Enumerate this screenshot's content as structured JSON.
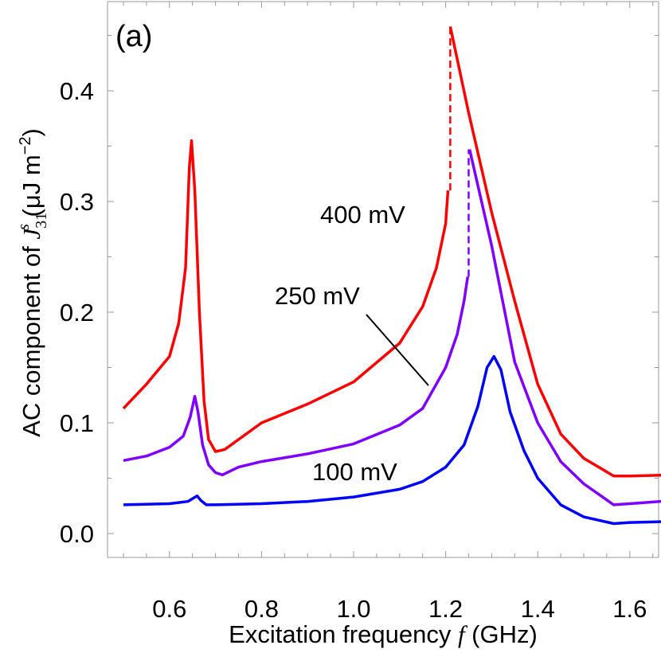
{
  "chart_data": {
    "type": "line",
    "panel_label": "(a)",
    "xlabel": {
      "prefix": "Excitation  frequency ",
      "var": "f",
      "suffix": "  (GHz)"
    },
    "ylabel": {
      "prefix": "AC  component  of  ",
      "var": "J",
      "sub": "31",
      "sup": "s",
      "suffix": "  (μJ m",
      "unit_exp": "−2",
      "close": ")"
    },
    "xlim": [
      0.46,
      1.71
    ],
    "ylim": [
      -0.022,
      0.48
    ],
    "xticks": [
      0.6,
      0.8,
      1.0,
      1.2,
      1.4,
      1.6
    ],
    "xtick_labels": [
      "0.6",
      "0.8",
      "1.0",
      "1.2",
      "1.4",
      "1.6"
    ],
    "yticks": [
      0.0,
      0.1,
      0.2,
      0.3,
      0.4
    ],
    "ytick_labels": [
      "0.0",
      "0.1",
      "0.2",
      "0.3",
      "0.4"
    ],
    "grid": false,
    "series": [
      {
        "name": "400 mV",
        "color": "#ff0000",
        "x": [
          0.5,
          0.55,
          0.6,
          0.62,
          0.635,
          0.643,
          0.648,
          0.655,
          0.665,
          0.675,
          0.685,
          0.7,
          0.72,
          0.75,
          0.8,
          0.9,
          1.0,
          1.1,
          1.15,
          1.18,
          1.2,
          1.205
        ],
        "y": [
          0.113,
          0.135,
          0.16,
          0.19,
          0.24,
          0.33,
          0.355,
          0.31,
          0.2,
          0.12,
          0.085,
          0.074,
          0.076,
          0.085,
          0.1,
          0.117,
          0.137,
          0.172,
          0.205,
          0.24,
          0.28,
          0.31
        ],
        "jump": {
          "x": 1.21,
          "from": 0.31,
          "to": 0.458
        },
        "x2": [
          1.21,
          1.25,
          1.3,
          1.35,
          1.4,
          1.45,
          1.5,
          1.565,
          1.6,
          1.7
        ],
        "y2": [
          0.458,
          0.38,
          0.29,
          0.21,
          0.135,
          0.09,
          0.068,
          0.052,
          0.052,
          0.053
        ]
      },
      {
        "name": "250 mV",
        "color": "#7f00ff",
        "x": [
          0.5,
          0.55,
          0.6,
          0.63,
          0.645,
          0.655,
          0.662,
          0.672,
          0.685,
          0.7,
          0.715,
          0.75,
          0.8,
          0.9,
          1.0,
          1.1,
          1.15,
          1.2,
          1.225,
          1.24,
          1.248
        ],
        "y": [
          0.066,
          0.07,
          0.078,
          0.088,
          0.105,
          0.124,
          0.11,
          0.08,
          0.062,
          0.055,
          0.053,
          0.06,
          0.065,
          0.072,
          0.081,
          0.098,
          0.113,
          0.15,
          0.18,
          0.21,
          0.232
        ],
        "jump": {
          "x": 1.25,
          "from": 0.232,
          "to": 0.347
        },
        "x2": [
          1.252,
          1.3,
          1.35,
          1.4,
          1.45,
          1.5,
          1.565,
          1.6,
          1.7
        ],
        "y2": [
          0.347,
          0.26,
          0.155,
          0.1,
          0.065,
          0.045,
          0.026,
          0.027,
          0.03
        ]
      },
      {
        "name": "100 mV",
        "color": "#0000ff",
        "x": [
          0.5,
          0.6,
          0.64,
          0.652,
          0.66,
          0.668,
          0.68,
          0.7,
          0.8,
          0.9,
          1.0,
          1.1,
          1.15,
          1.2,
          1.24,
          1.27,
          1.29,
          1.305,
          1.32,
          1.34,
          1.37,
          1.4,
          1.45,
          1.5,
          1.565,
          1.6,
          1.7
        ],
        "y": [
          0.026,
          0.027,
          0.029,
          0.032,
          0.034,
          0.03,
          0.026,
          0.026,
          0.027,
          0.029,
          0.033,
          0.04,
          0.047,
          0.06,
          0.08,
          0.115,
          0.15,
          0.16,
          0.148,
          0.11,
          0.075,
          0.05,
          0.026,
          0.015,
          0.009,
          0.01,
          0.011
        ]
      }
    ],
    "annotations": [
      "400 mV",
      "250 mV",
      "100 mV"
    ]
  }
}
